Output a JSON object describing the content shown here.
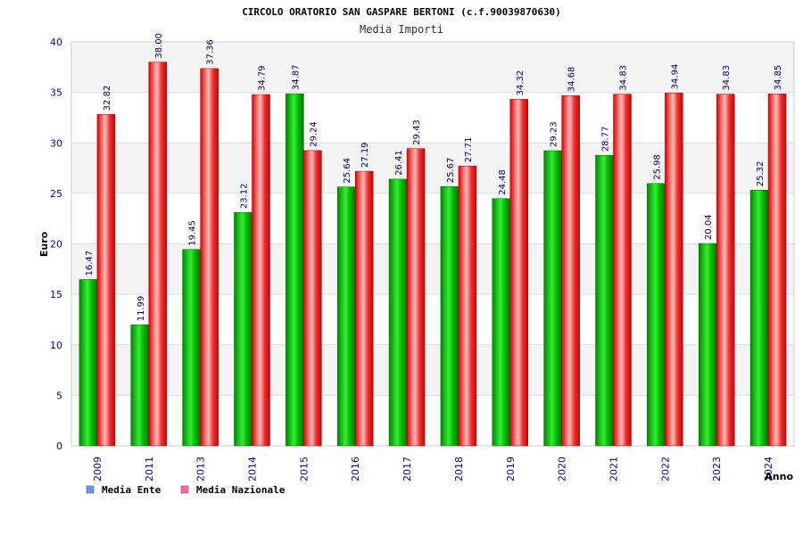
{
  "chart_data": {
    "type": "bar",
    "title": "CIRCOLO ORATORIO SAN GASPARE BERTONI (c.f.90039870630)",
    "subtitle": "Media Importi",
    "xlabel": "Anno",
    "ylabel": "Euro",
    "ylim": [
      0,
      40
    ],
    "yticks": [
      0,
      5,
      10,
      15,
      20,
      25,
      30,
      35,
      40
    ],
    "grid": true,
    "legend_position": "bottom-left",
    "categories": [
      "2009",
      "2011",
      "2013",
      "2014",
      "2015",
      "2016",
      "2017",
      "2018",
      "2019",
      "2020",
      "2021",
      "2022",
      "2023",
      "2024"
    ],
    "series": [
      {
        "name": "Media Ente",
        "color": "#00cc00",
        "legend_color": "#6699ff",
        "values": [
          16.47,
          11.99,
          19.45,
          23.12,
          34.87,
          25.64,
          26.41,
          25.67,
          24.48,
          29.23,
          28.77,
          25.98,
          20.04,
          25.32
        ],
        "labels": [
          "16.47",
          "11.99",
          "19.45",
          "23.12",
          "34.87",
          "25.64",
          "26.41",
          "25.67",
          "24.48",
          "29.23",
          "28.77",
          "25.98",
          "20.04",
          "25.32"
        ]
      },
      {
        "name": "Media Nazionale",
        "color": "#ee1111",
        "legend_color": "#ff66aa",
        "values": [
          32.82,
          38.0,
          37.36,
          34.79,
          29.24,
          27.19,
          29.43,
          27.71,
          34.32,
          34.68,
          34.83,
          34.94,
          34.83,
          34.85
        ],
        "labels": [
          "32.82",
          "38.00",
          "37.36",
          "34.79",
          "29.24",
          "27.19",
          "29.43",
          "27.71",
          "34.32",
          "34.68",
          "34.83",
          "34.94",
          "34.83",
          "34.85"
        ]
      }
    ]
  }
}
